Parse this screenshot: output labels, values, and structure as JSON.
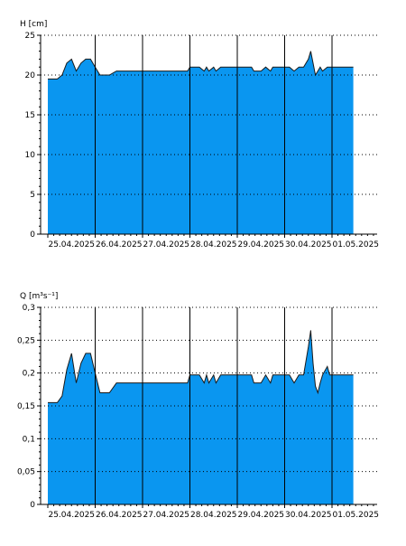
{
  "chart_data": [
    {
      "type": "area",
      "ylabel": "H [cm]",
      "ylim": [
        0,
        25
      ],
      "yticks": [
        "0",
        "5",
        "10",
        "15",
        "20",
        "25"
      ],
      "ytick_values": [
        0,
        5,
        10,
        15,
        20,
        25
      ],
      "xlim": [
        25.0,
        26.5
      ],
      "xlabels": [
        "25.04.2025",
        "26.04.2025",
        "27.04.2025",
        "28.04.2025",
        "29.04.2025",
        "30.04.2025",
        "01.05.2025"
      ],
      "grid": "dotted-horizontal",
      "fill_color": "#0A96F0",
      "x": [
        0,
        0.2,
        0.3,
        0.4,
        0.5,
        0.6,
        0.7,
        0.8,
        0.9,
        1.0,
        1.1,
        1.2,
        1.3,
        1.45,
        1.55,
        1.6,
        1.7,
        1.8,
        1.9,
        2.0,
        2.5,
        2.95,
        3.0,
        3.2,
        3.3,
        3.35,
        3.4,
        3.5,
        3.55,
        3.65,
        4.0,
        4.3,
        4.35,
        4.4,
        4.5,
        4.6,
        4.7,
        4.75,
        4.95,
        5.0,
        5.1,
        5.2,
        5.3,
        5.4,
        5.5,
        5.55,
        5.6,
        5.65,
        5.7,
        5.75,
        5.8,
        5.9,
        5.95,
        6.0,
        6.2,
        6.45
      ],
      "y": [
        19.5,
        19.5,
        20.0,
        21.5,
        22.0,
        20.5,
        21.5,
        22.0,
        22.0,
        21.0,
        20.0,
        20.0,
        20.0,
        20.5,
        20.5,
        20.5,
        20.5,
        20.5,
        20.5,
        20.5,
        20.5,
        20.5,
        21.0,
        21.0,
        20.5,
        21.0,
        20.5,
        21.0,
        20.5,
        21.0,
        21.0,
        21.0,
        20.5,
        20.5,
        20.5,
        21.0,
        20.5,
        21.0,
        21.0,
        21.0,
        21.0,
        20.5,
        21.0,
        21.0,
        22.0,
        23.0,
        21.5,
        20.0,
        20.5,
        21.0,
        20.5,
        21.0,
        21.0,
        21.0,
        21.0,
        21.0
      ]
    },
    {
      "type": "area",
      "ylabel": "Q [m³s⁻¹]",
      "ylim": [
        0,
        0.3
      ],
      "yticks": [
        "0",
        "0,05",
        "0,1",
        "0,15",
        "0,2",
        "0,25",
        "0,3"
      ],
      "ytick_values": [
        0,
        0.05,
        0.1,
        0.15,
        0.2,
        0.25,
        0.3
      ],
      "xlabels": [
        "25.04.2025",
        "26.04.2025",
        "27.04.2025",
        "28.04.2025",
        "29.04.2025",
        "30.04.2025",
        "01.05.2025"
      ],
      "grid": "dotted-horizontal",
      "fill_color": "#0A96F0",
      "x": [
        0,
        0.2,
        0.3,
        0.4,
        0.5,
        0.6,
        0.7,
        0.8,
        0.9,
        1.0,
        1.1,
        1.2,
        1.3,
        1.45,
        1.55,
        2.0,
        2.5,
        2.95,
        3.0,
        3.2,
        3.3,
        3.35,
        3.4,
        3.5,
        3.55,
        3.65,
        4.0,
        4.3,
        4.35,
        4.4,
        4.5,
        4.6,
        4.7,
        4.75,
        4.95,
        5.0,
        5.1,
        5.2,
        5.3,
        5.4,
        5.5,
        5.55,
        5.6,
        5.65,
        5.7,
        5.75,
        5.8,
        5.9,
        5.95,
        6.0,
        6.2,
        6.45
      ],
      "y": [
        0.155,
        0.155,
        0.165,
        0.205,
        0.23,
        0.185,
        0.215,
        0.23,
        0.23,
        0.2,
        0.17,
        0.17,
        0.17,
        0.185,
        0.185,
        0.185,
        0.185,
        0.185,
        0.197,
        0.197,
        0.185,
        0.197,
        0.185,
        0.197,
        0.185,
        0.197,
        0.197,
        0.197,
        0.185,
        0.185,
        0.185,
        0.197,
        0.185,
        0.197,
        0.197,
        0.197,
        0.197,
        0.185,
        0.197,
        0.197,
        0.24,
        0.265,
        0.215,
        0.18,
        0.17,
        0.185,
        0.197,
        0.21,
        0.197,
        0.197,
        0.197,
        0.197
      ]
    }
  ]
}
